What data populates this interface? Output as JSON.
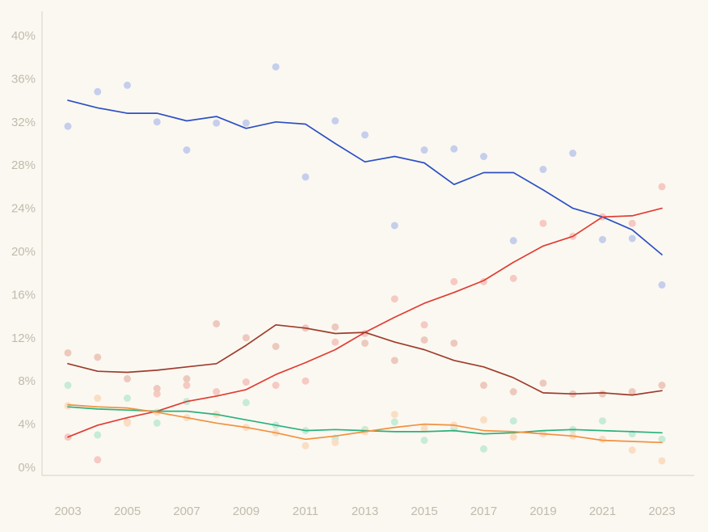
{
  "colors": {
    "background": "#fbf8f1",
    "axis_line": "#d7d2c5",
    "tick_label": "#c1bbad"
  },
  "chart_data": {
    "type": "scatter",
    "title": "",
    "xlabel": "",
    "ylabel": "",
    "x": [
      2003,
      2004,
      2005,
      2006,
      2007,
      2008,
      2009,
      2010,
      2011,
      2012,
      2013,
      2014,
      2015,
      2016,
      2017,
      2018,
      2019,
      2020,
      2021,
      2022,
      2023
    ],
    "xticks": [
      2003,
      2005,
      2007,
      2009,
      2011,
      2013,
      2015,
      2017,
      2019,
      2021,
      2023
    ],
    "yticks": [
      0,
      4,
      8,
      12,
      16,
      20,
      24,
      28,
      32,
      36,
      40
    ],
    "ytick_suffix": "%",
    "ylim": [
      0,
      40
    ],
    "grid": false,
    "legend_position": "none",
    "note": "pale dots are yearly raw values, solid lines are smoothed trends",
    "series": [
      {
        "name": "blue-series",
        "color": "#2d50c3",
        "dot_color": "#c5cfec",
        "trend": [
          34.0,
          33.3,
          32.8,
          32.8,
          32.1,
          32.5,
          31.4,
          32.0,
          31.8,
          30.0,
          28.3,
          28.8,
          28.2,
          26.2,
          27.3,
          27.3,
          25.7,
          24.0,
          23.2,
          22.0,
          19.7
        ],
        "points": [
          31.6,
          34.8,
          35.4,
          32.0,
          29.4,
          31.9,
          31.9,
          37.1,
          26.9,
          32.1,
          30.8,
          22.4,
          29.4,
          29.5,
          28.8,
          21.0,
          27.6,
          29.1,
          21.1,
          21.2,
          16.9
        ]
      },
      {
        "name": "red-series",
        "color": "#e03d33",
        "dot_color": "#f6c9c3",
        "trend": [
          2.8,
          3.9,
          4.6,
          5.2,
          6.1,
          6.6,
          7.2,
          8.6,
          9.7,
          10.9,
          12.5,
          13.9,
          15.2,
          16.2,
          17.3,
          19.0,
          20.5,
          21.4,
          23.2,
          23.3,
          24.0
        ],
        "points": [
          2.8,
          0.7,
          4.2,
          6.8,
          7.6,
          7.0,
          7.9,
          7.6,
          8.0,
          11.6,
          12.4,
          15.6,
          13.2,
          17.2,
          17.2,
          17.5,
          22.6,
          21.4,
          23.2,
          22.6,
          26.0
        ]
      },
      {
        "name": "maroon-series",
        "color": "#9e3c2d",
        "dot_color": "#edc9bd",
        "trend": [
          9.6,
          8.9,
          8.8,
          9.0,
          9.3,
          9.6,
          11.3,
          13.2,
          12.9,
          12.4,
          12.5,
          11.6,
          10.9,
          9.9,
          9.3,
          8.3,
          6.9,
          6.8,
          6.9,
          6.7,
          7.1
        ],
        "points": [
          10.6,
          10.2,
          8.2,
          7.3,
          8.2,
          13.3,
          12.0,
          11.2,
          12.9,
          13.0,
          11.5,
          9.9,
          11.8,
          11.5,
          7.6,
          7.0,
          7.8,
          6.8,
          6.8,
          7.0,
          7.6
        ]
      },
      {
        "name": "green-series",
        "color": "#2ab17c",
        "dot_color": "#c6ebd9",
        "trend": [
          5.6,
          5.4,
          5.3,
          5.2,
          5.2,
          4.9,
          4.4,
          3.9,
          3.4,
          3.5,
          3.4,
          3.3,
          3.3,
          3.4,
          3.1,
          3.2,
          3.4,
          3.5,
          3.4,
          3.3,
          3.2
        ],
        "points": [
          7.6,
          3.0,
          6.4,
          4.1,
          6.1,
          4.9,
          6.0,
          3.9,
          3.4,
          2.7,
          3.5,
          4.2,
          2.5,
          3.6,
          1.7,
          4.3,
          3.1,
          3.5,
          4.3,
          3.1,
          2.6
        ]
      },
      {
        "name": "orange-series",
        "color": "#f2913f",
        "dot_color": "#fadec4",
        "trend": [
          5.8,
          5.6,
          5.5,
          5.1,
          4.6,
          4.1,
          3.7,
          3.2,
          2.6,
          2.9,
          3.3,
          3.7,
          4.0,
          3.9,
          3.4,
          3.3,
          3.1,
          2.9,
          2.5,
          2.4,
          2.3
        ],
        "points": [
          5.7,
          6.4,
          4.1,
          5.1,
          4.6,
          4.9,
          3.7,
          3.2,
          2.0,
          2.3,
          3.3,
          4.9,
          3.6,
          3.9,
          4.4,
          2.8,
          3.1,
          2.9,
          2.6,
          1.6,
          0.6
        ]
      }
    ]
  }
}
